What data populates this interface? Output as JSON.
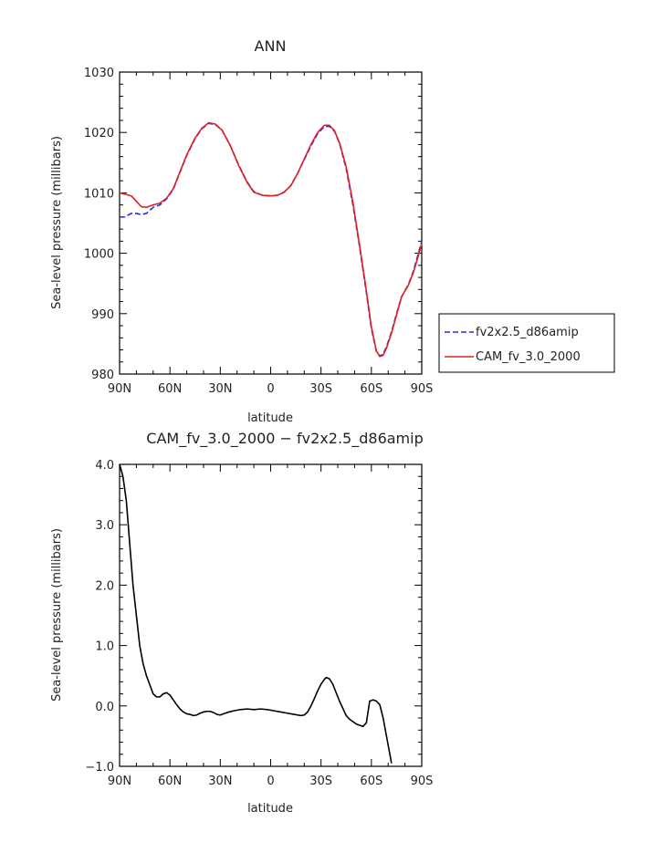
{
  "chart_data": [
    {
      "type": "line",
      "title": "ANN",
      "xlabel": "latitude",
      "ylabel": "Sea-level pressure (millibars)",
      "xlim": [
        90,
        -90
      ],
      "ylim": [
        980,
        1030
      ],
      "xticks": [
        90,
        60,
        30,
        0,
        -30,
        -60,
        -90
      ],
      "xtick_labels": [
        "90N",
        "60N",
        "30N",
        "0",
        "30S",
        "60S",
        "90S"
      ],
      "yticks": [
        980,
        990,
        1000,
        1010,
        1020,
        1030
      ],
      "ytick_labels": [
        "980",
        "990",
        "1000",
        "1010",
        "1020",
        "1030"
      ],
      "legend": "right",
      "series": [
        {
          "name": "fv2x2.5_d86amip",
          "color": "#2a2ad8",
          "dash": "dashed",
          "points": [
            [
              90,
              1006
            ],
            [
              87,
              1006
            ],
            [
              83,
              1006.6
            ],
            [
              80,
              1006.6
            ],
            [
              77,
              1006.4
            ],
            [
              74,
              1006.6
            ],
            [
              70,
              1007.6
            ],
            [
              66,
              1008
            ],
            [
              62,
              1009
            ],
            [
              58,
              1010.6
            ],
            [
              54,
              1013.4
            ],
            [
              50,
              1016.2
            ],
            [
              45,
              1019
            ],
            [
              41,
              1020.6
            ],
            [
              37,
              1021.5
            ],
            [
              33,
              1021.3
            ],
            [
              29,
              1020.4
            ],
            [
              24,
              1017.8
            ],
            [
              19,
              1014.6
            ],
            [
              14,
              1011.8
            ],
            [
              10,
              1010.2
            ],
            [
              5,
              1009.6
            ],
            [
              0,
              1009.5
            ],
            [
              -4,
              1009.6
            ],
            [
              -8,
              1010.1
            ],
            [
              -12,
              1011.2
            ],
            [
              -16,
              1013.2
            ],
            [
              -20,
              1015.5
            ],
            [
              -24,
              1017.8
            ],
            [
              -28,
              1019.8
            ],
            [
              -32,
              1021
            ],
            [
              -35,
              1021
            ],
            [
              -38,
              1020.2
            ],
            [
              -41,
              1018.2
            ],
            [
              -45,
              1014
            ],
            [
              -49,
              1008
            ],
            [
              -53,
              1001
            ],
            [
              -57,
              993.5
            ],
            [
              -60,
              987.5
            ],
            [
              -63,
              983.7
            ],
            [
              -65,
              983
            ],
            [
              -67,
              983.3
            ],
            [
              -69,
              984.5
            ],
            [
              -72,
              987
            ],
            [
              -75,
              990
            ],
            [
              -78,
              992.8
            ],
            [
              -82,
              994.8
            ],
            [
              -85,
              997
            ],
            [
              -88,
              1000
            ],
            [
              -90,
              1002
            ]
          ]
        },
        {
          "name": "CAM_fv_3.0_2000",
          "color": "#e02020",
          "dash": "solid",
          "points": [
            [
              90,
              1010
            ],
            [
              87,
              1009.8
            ],
            [
              83,
              1009.5
            ],
            [
              80,
              1008.6
            ],
            [
              77,
              1007.7
            ],
            [
              74,
              1007.6
            ],
            [
              70,
              1008
            ],
            [
              66,
              1008.3
            ],
            [
              62,
              1009.1
            ],
            [
              58,
              1010.7
            ],
            [
              54,
              1013.5
            ],
            [
              50,
              1016.3
            ],
            [
              45,
              1019.1
            ],
            [
              41,
              1020.7
            ],
            [
              37,
              1021.6
            ],
            [
              33,
              1021.4
            ],
            [
              29,
              1020.4
            ],
            [
              24,
              1017.8
            ],
            [
              19,
              1014.5
            ],
            [
              14,
              1011.7
            ],
            [
              10,
              1010.1
            ],
            [
              5,
              1009.6
            ],
            [
              0,
              1009.5
            ],
            [
              -4,
              1009.6
            ],
            [
              -8,
              1010.1
            ],
            [
              -12,
              1011.2
            ],
            [
              -16,
              1013.2
            ],
            [
              -20,
              1015.6
            ],
            [
              -24,
              1018
            ],
            [
              -28,
              1020
            ],
            [
              -32,
              1021.2
            ],
            [
              -35,
              1021.2
            ],
            [
              -38,
              1020.3
            ],
            [
              -41,
              1018.3
            ],
            [
              -45,
              1014.3
            ],
            [
              -49,
              1008.4
            ],
            [
              -53,
              1001.3
            ],
            [
              -57,
              993.8
            ],
            [
              -60,
              987.8
            ],
            [
              -63,
              983.8
            ],
            [
              -65,
              982.9
            ],
            [
              -67,
              983.1
            ],
            [
              -69,
              984.3
            ],
            [
              -72,
              986.8
            ],
            [
              -75,
              989.8
            ],
            [
              -78,
              992.8
            ],
            [
              -82,
              994.7
            ],
            [
              -85,
              996.8
            ],
            [
              -88,
              999.6
            ],
            [
              -90,
              1001.6
            ]
          ]
        }
      ]
    },
    {
      "type": "line",
      "title": "CAM_fv_3.0_2000 − fv2x2.5_d86amip",
      "xlabel": "latitude",
      "ylabel": "Sea-level pressure (millibars)",
      "xlim": [
        90,
        -90
      ],
      "ylim": [
        -1.0,
        4.0
      ],
      "xticks": [
        90,
        60,
        30,
        0,
        -30,
        -60,
        -90
      ],
      "xtick_labels": [
        "90N",
        "60N",
        "30N",
        "0",
        "30S",
        "60S",
        "90S"
      ],
      "yticks": [
        -1.0,
        0.0,
        1.0,
        2.0,
        3.0,
        4.0
      ],
      "ytick_labels": [
        "−1.0",
        "0.0",
        "1.0",
        "2.0",
        "3.0",
        "4.0"
      ],
      "series": [
        {
          "color": "#000000",
          "dash": "solid",
          "points": [
            [
              90,
              4.0
            ],
            [
              88,
              3.8
            ],
            [
              86,
              3.4
            ],
            [
              84,
              2.7
            ],
            [
              82,
              2.0
            ],
            [
              80,
              1.5
            ],
            [
              78,
              1.0
            ],
            [
              76,
              0.7
            ],
            [
              74,
              0.5
            ],
            [
              72,
              0.35
            ],
            [
              70,
              0.2
            ],
            [
              68,
              0.15
            ],
            [
              66,
              0.15
            ],
            [
              64,
              0.2
            ],
            [
              62,
              0.22
            ],
            [
              60,
              0.18
            ],
            [
              58,
              0.1
            ],
            [
              56,
              0.02
            ],
            [
              54,
              -0.05
            ],
            [
              52,
              -0.1
            ],
            [
              50,
              -0.13
            ],
            [
              48,
              -0.14
            ],
            [
              46,
              -0.16
            ],
            [
              44,
              -0.15
            ],
            [
              42,
              -0.12
            ],
            [
              40,
              -0.1
            ],
            [
              38,
              -0.09
            ],
            [
              36,
              -0.09
            ],
            [
              34,
              -0.11
            ],
            [
              32,
              -0.14
            ],
            [
              30,
              -0.15
            ],
            [
              28,
              -0.13
            ],
            [
              26,
              -0.11
            ],
            [
              22,
              -0.08
            ],
            [
              18,
              -0.06
            ],
            [
              14,
              -0.05
            ],
            [
              10,
              -0.06
            ],
            [
              6,
              -0.05
            ],
            [
              2,
              -0.06
            ],
            [
              -2,
              -0.08
            ],
            [
              -6,
              -0.1
            ],
            [
              -10,
              -0.12
            ],
            [
              -14,
              -0.14
            ],
            [
              -18,
              -0.16
            ],
            [
              -20,
              -0.15
            ],
            [
              -22,
              -0.1
            ],
            [
              -24,
              0.0
            ],
            [
              -26,
              0.12
            ],
            [
              -28,
              0.25
            ],
            [
              -30,
              0.36
            ],
            [
              -32,
              0.44
            ],
            [
              -33,
              0.47
            ],
            [
              -35,
              0.45
            ],
            [
              -37,
              0.36
            ],
            [
              -39,
              0.22
            ],
            [
              -41,
              0.08
            ],
            [
              -43,
              -0.04
            ],
            [
              -45,
              -0.16
            ],
            [
              -47,
              -0.22
            ],
            [
              -49,
              -0.26
            ],
            [
              -51,
              -0.3
            ],
            [
              -53,
              -0.32
            ],
            [
              -55,
              -0.34
            ],
            [
              -57,
              -0.28
            ],
            [
              -58,
              -0.1
            ],
            [
              -59,
              0.08
            ],
            [
              -61,
              0.1
            ],
            [
              -63,
              0.08
            ],
            [
              -65,
              0.02
            ],
            [
              -67,
              -0.2
            ],
            [
              -69,
              -0.5
            ],
            [
              -71,
              -0.8
            ],
            [
              -72,
              -0.95
            ]
          ]
        }
      ]
    }
  ]
}
